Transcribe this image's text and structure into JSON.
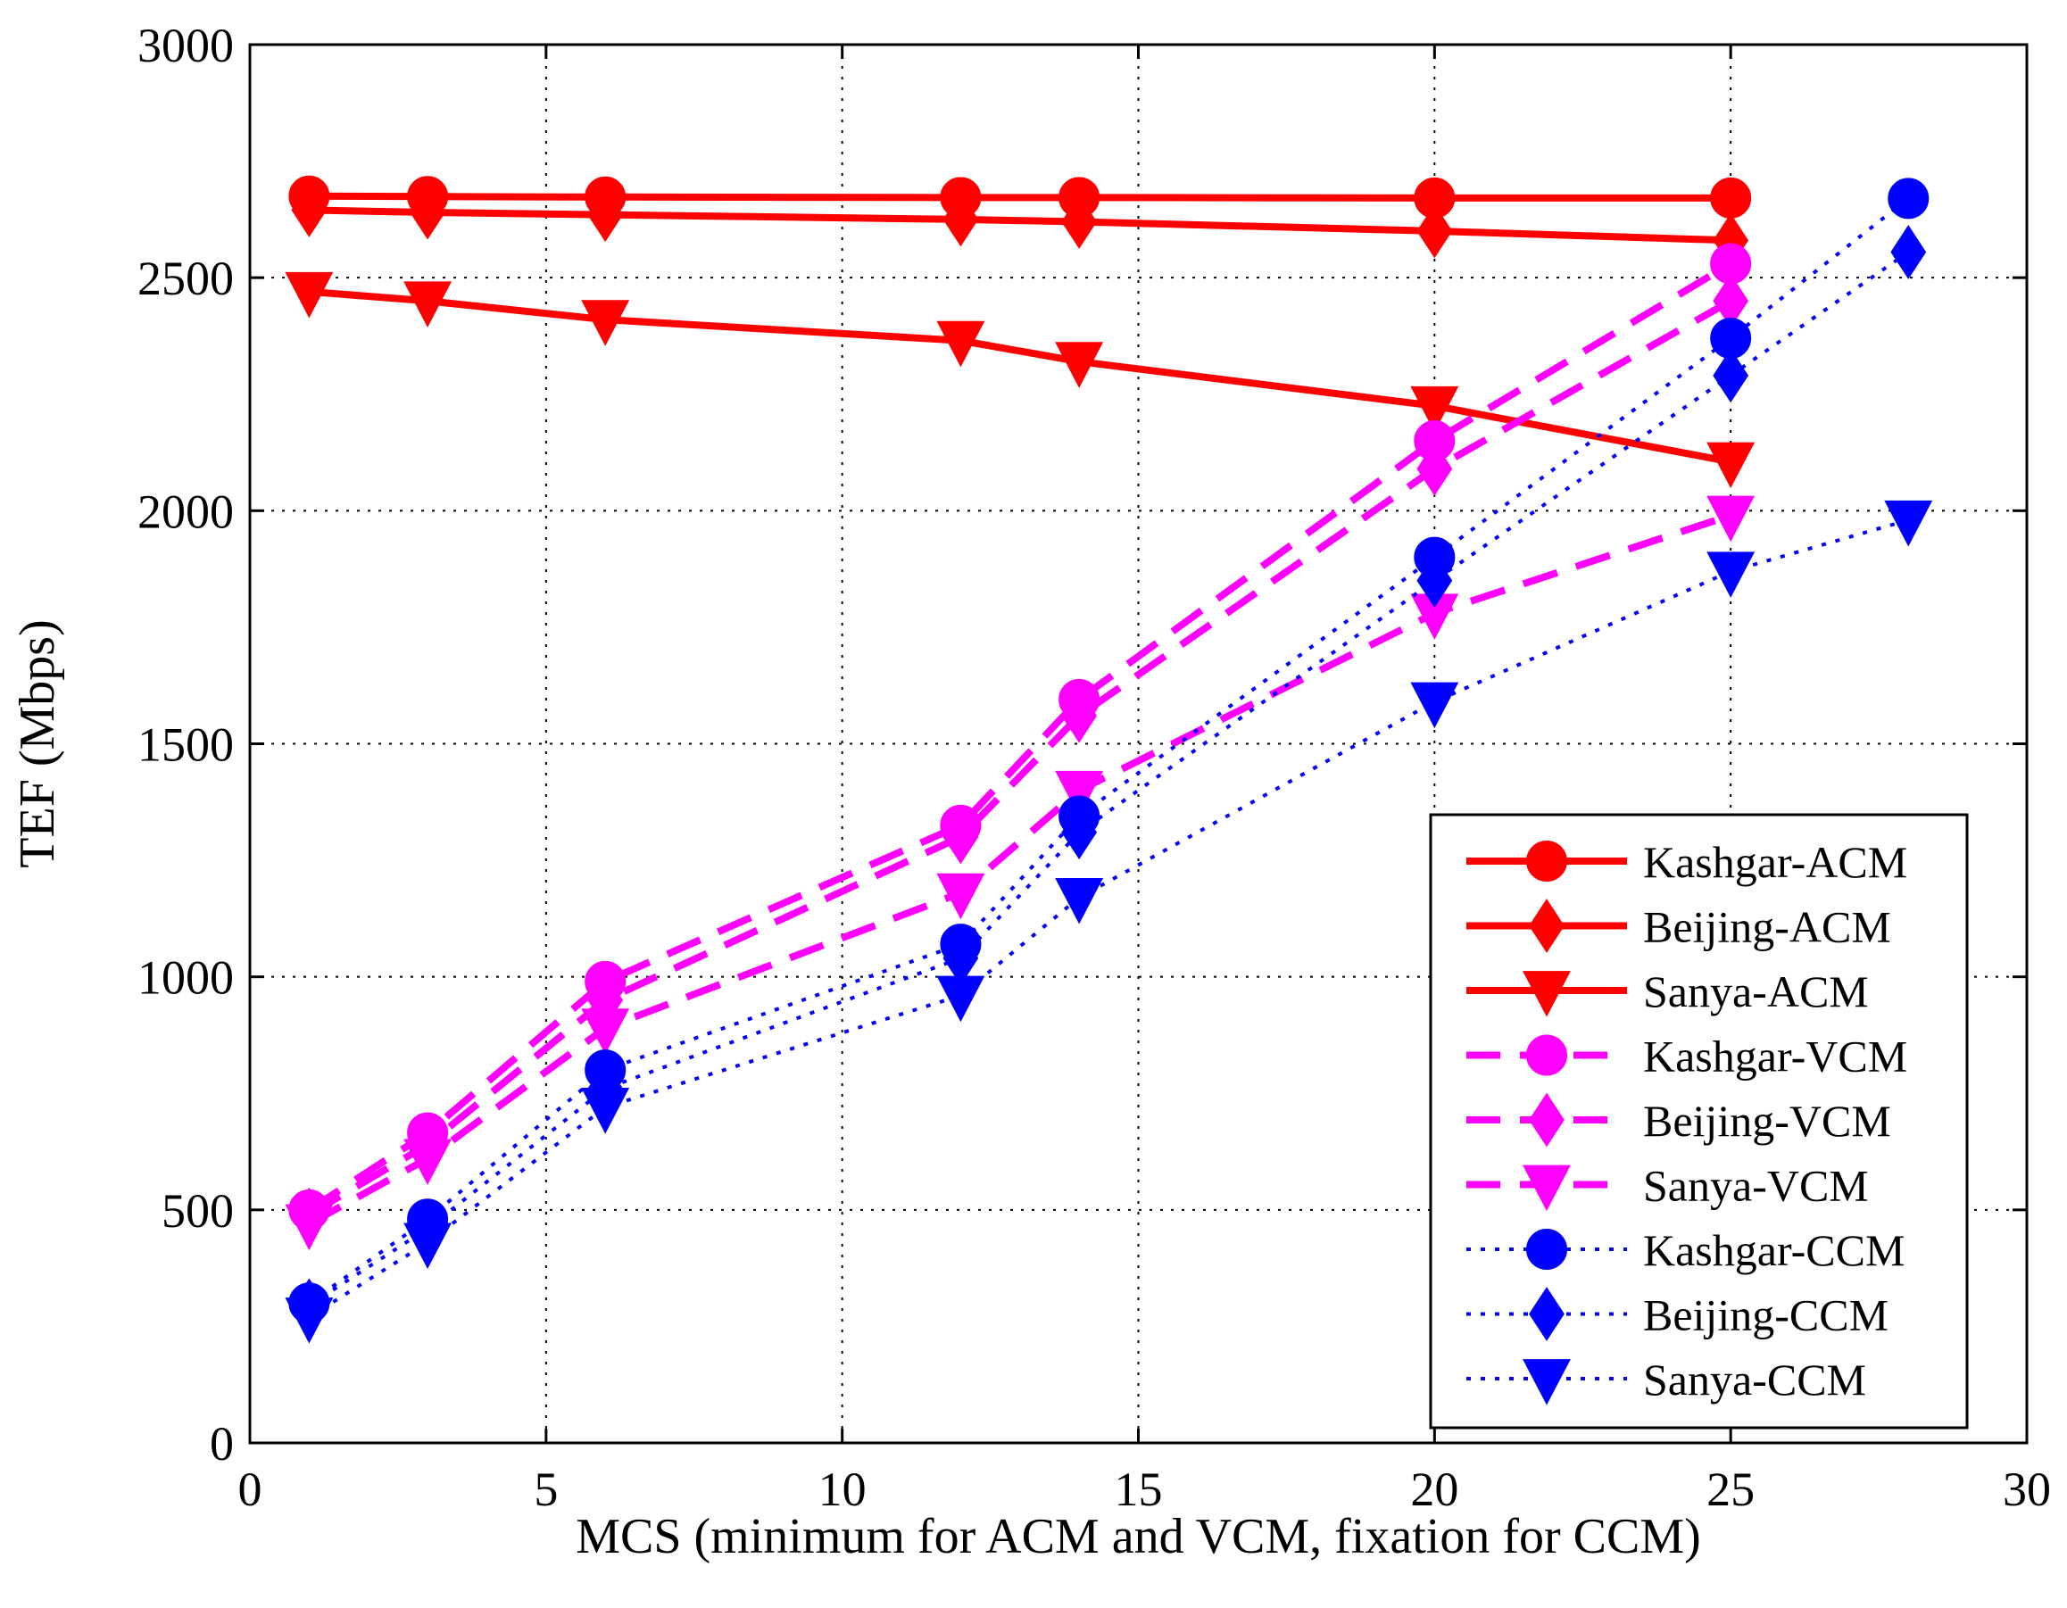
{
  "chart_data": {
    "type": "line",
    "xlabel": "MCS (minimum for ACM and VCM, fixation for CCM)",
    "ylabel": "TEF (Mbps)",
    "xlim": [
      0,
      30
    ],
    "ylim": [
      0,
      3000
    ],
    "xticks": [
      0,
      5,
      10,
      15,
      20,
      25,
      30
    ],
    "yticks": [
      0,
      500,
      1000,
      1500,
      2000,
      2500,
      3000
    ],
    "grid": true,
    "legend_position": "bottom-right",
    "series": [
      {
        "name": "Kashgar-ACM",
        "color": "#ff0000",
        "dash": "solid",
        "marker": "circle",
        "x": [
          1,
          3,
          6,
          12,
          14,
          20,
          25
        ],
        "y": [
          2675,
          2674,
          2673,
          2672,
          2672,
          2671,
          2671
        ]
      },
      {
        "name": "Beijing-ACM",
        "color": "#ff0000",
        "dash": "solid",
        "marker": "diamond",
        "x": [
          1,
          3,
          6,
          12,
          14,
          20,
          25
        ],
        "y": [
          2645,
          2640,
          2635,
          2625,
          2620,
          2600,
          2580
        ]
      },
      {
        "name": "Sanya-ACM",
        "color": "#ff0000",
        "dash": "solid",
        "marker": "triangle-down",
        "x": [
          1,
          3,
          6,
          12,
          14,
          20,
          25
        ],
        "y": [
          2470,
          2450,
          2410,
          2365,
          2320,
          2225,
          2105
        ]
      },
      {
        "name": "Kashgar-VCM",
        "color": "#ff00ff",
        "dash": "dashed",
        "marker": "circle",
        "x": [
          1,
          3,
          6,
          12,
          14,
          20,
          25
        ],
        "y": [
          500,
          665,
          990,
          1325,
          1595,
          2150,
          2530
        ]
      },
      {
        "name": "Beijing-VCM",
        "color": "#ff00ff",
        "dash": "dashed",
        "marker": "diamond",
        "x": [
          1,
          3,
          6,
          12,
          14,
          20,
          25
        ],
        "y": [
          490,
          640,
          950,
          1300,
          1560,
          2090,
          2450
        ]
      },
      {
        "name": "Sanya-VCM",
        "color": "#ff00ff",
        "dash": "dashed",
        "marker": "triangle-down",
        "x": [
          1,
          3,
          6,
          12,
          14,
          20,
          25
        ],
        "y": [
          470,
          610,
          890,
          1180,
          1400,
          1780,
          1990
        ]
      },
      {
        "name": "Kashgar-CCM",
        "color": "#0000ff",
        "dash": "dotted",
        "marker": "circle",
        "x": [
          1,
          3,
          6,
          12,
          14,
          20,
          25,
          28
        ],
        "y": [
          300,
          480,
          800,
          1070,
          1345,
          1900,
          2370,
          2670
        ]
      },
      {
        "name": "Beijing-CCM",
        "color": "#0000ff",
        "dash": "dotted",
        "marker": "diamond",
        "x": [
          1,
          3,
          6,
          12,
          14,
          20,
          25,
          28
        ],
        "y": [
          295,
          460,
          760,
          1040,
          1310,
          1850,
          2290,
          2555
        ]
      },
      {
        "name": "Sanya-CCM",
        "color": "#0000ff",
        "dash": "dotted",
        "marker": "triangle-down",
        "x": [
          1,
          3,
          6,
          12,
          14,
          20,
          25,
          28
        ],
        "y": [
          270,
          430,
          720,
          960,
          1170,
          1590,
          1870,
          1980
        ]
      }
    ]
  }
}
